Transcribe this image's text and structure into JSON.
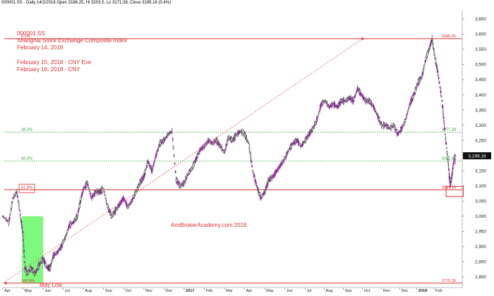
{
  "header": {
    "info_line": "000001.SS - Daily 14/2/2018 Open 3188.25, Hi 3203.5, Lo 3171.38, Close 3199.16 (0.4%)"
  },
  "annotations": {
    "symbol": "000001.SS",
    "index_name": "Shanghai Stock Exchange Composite Index",
    "date": "February 14, 2018",
    "cny_eve": "February 15, 2018 - CNY Eve",
    "cny": "February 16, 2018 - CNY",
    "watermark": "AmiBrokerAcademy.com  2018",
    "may_low": "May Low"
  },
  "fib_levels": [
    {
      "label": "0.0%",
      "price": 3585.05,
      "price_label": "3585.05",
      "color": "#e03030",
      "style": "solid"
    },
    {
      "label": "38.2%",
      "price": 3277.28,
      "price_label": "3277.28",
      "color": "#2e9c2e",
      "style": "dotted"
    },
    {
      "label": "50.0%",
      "price": 3182.21,
      "price_label": "3182.21",
      "color": "#2e9c2e",
      "style": "dotted"
    },
    {
      "label": "61.8%",
      "price": 3087.15,
      "price_label": "3087.15",
      "color": "#e03030",
      "style": "solid"
    },
    {
      "label": "100.0%",
      "price": 2779.39,
      "price_label": "2779.39",
      "color": "#e03030",
      "style": "solid"
    }
  ],
  "last_close_label": "3,199.16",
  "chart_data": {
    "type": "line",
    "title": "000001.SS",
    "y_axis": {
      "ticks": [
        "3,650",
        "3,600",
        "3,550",
        "3,500",
        "3,450",
        "3,400",
        "3,350",
        "3,300",
        "3,250",
        "3,200",
        "3,150",
        "3,100",
        "3,050",
        "3,000",
        "2,950",
        "2,900",
        "2,850",
        "2,800"
      ],
      "tick_values": [
        3650,
        3600,
        3550,
        3500,
        3450,
        3400,
        3350,
        3300,
        3250,
        3200,
        3150,
        3100,
        3050,
        3000,
        2950,
        2900,
        2850,
        2800
      ],
      "ylim": [
        2765,
        3680
      ]
    },
    "x_axis": {
      "ticks": [
        "Apr",
        "May",
        "Jun",
        "Jul",
        "Aug",
        "Sep",
        "Oct",
        "Nov",
        "Dec",
        "2017",
        "Feb",
        "Mar",
        "Apr",
        "May",
        "Jun",
        "Jul",
        "Aug",
        "Sep",
        "Oct",
        "Nov",
        "Dec",
        "2018",
        "Feb"
      ],
      "tick_index": [
        0,
        1,
        2,
        3,
        4,
        5,
        6,
        7,
        8,
        9,
        10,
        11,
        12,
        13,
        14,
        15,
        15.95,
        16.9,
        17.85,
        18.8,
        19.7,
        20.55,
        21.4
      ],
      "xlim": [
        0,
        22.8
      ]
    },
    "series": [
      {
        "values": [
          [
            0.0,
            3000
          ],
          [
            0.3,
            2980
          ],
          [
            0.5,
            3060
          ],
          [
            0.7,
            3080
          ],
          [
            0.9,
            2990
          ],
          [
            1.0,
            2940
          ],
          [
            1.1,
            2830
          ],
          [
            1.2,
            2810
          ],
          [
            1.4,
            2830
          ],
          [
            1.6,
            2810
          ],
          [
            1.8,
            2840
          ],
          [
            2.0,
            2860
          ],
          [
            2.2,
            2830
          ],
          [
            2.35,
            2830
          ],
          [
            2.5,
            2870
          ],
          [
            2.7,
            2880
          ],
          [
            2.9,
            2900
          ],
          [
            3.1,
            2930
          ],
          [
            3.3,
            2970
          ],
          [
            3.5,
            2980
          ],
          [
            3.7,
            3000
          ],
          [
            3.85,
            3050
          ],
          [
            4.0,
            3090
          ],
          [
            4.2,
            3110
          ],
          [
            4.4,
            3060
          ],
          [
            4.6,
            3080
          ],
          [
            4.8,
            3080
          ],
          [
            5.0,
            3090
          ],
          [
            5.2,
            3030
          ],
          [
            5.4,
            3000
          ],
          [
            5.6,
            3020
          ],
          [
            5.8,
            3040
          ],
          [
            6.0,
            3060
          ],
          [
            6.2,
            3030
          ],
          [
            6.4,
            3050
          ],
          [
            6.6,
            3080
          ],
          [
            6.8,
            3110
          ],
          [
            7.0,
            3130
          ],
          [
            7.2,
            3180
          ],
          [
            7.4,
            3150
          ],
          [
            7.6,
            3200
          ],
          [
            7.8,
            3240
          ],
          [
            8.0,
            3250
          ],
          [
            8.2,
            3270
          ],
          [
            8.4,
            3280
          ],
          [
            8.6,
            3120
          ],
          [
            8.8,
            3100
          ],
          [
            9.0,
            3110
          ],
          [
            9.2,
            3140
          ],
          [
            9.4,
            3160
          ],
          [
            9.6,
            3190
          ],
          [
            9.8,
            3220
          ],
          [
            10.0,
            3230
          ],
          [
            10.2,
            3250
          ],
          [
            10.4,
            3240
          ],
          [
            10.6,
            3250
          ],
          [
            10.8,
            3230
          ],
          [
            11.0,
            3210
          ],
          [
            11.2,
            3260
          ],
          [
            11.4,
            3250
          ],
          [
            11.6,
            3270
          ],
          [
            11.8,
            3280
          ],
          [
            12.0,
            3270
          ],
          [
            12.2,
            3240
          ],
          [
            12.4,
            3150
          ],
          [
            12.6,
            3100
          ],
          [
            12.8,
            3060
          ],
          [
            13.0,
            3080
          ],
          [
            13.2,
            3120
          ],
          [
            13.4,
            3130
          ],
          [
            13.6,
            3150
          ],
          [
            13.8,
            3170
          ],
          [
            14.0,
            3190
          ],
          [
            14.2,
            3220
          ],
          [
            14.4,
            3240
          ],
          [
            14.6,
            3250
          ],
          [
            14.8,
            3230
          ],
          [
            15.0,
            3250
          ],
          [
            15.2,
            3270
          ],
          [
            15.4,
            3290
          ],
          [
            15.6,
            3320
          ],
          [
            15.8,
            3370
          ],
          [
            16.0,
            3380
          ],
          [
            16.2,
            3360
          ],
          [
            16.4,
            3370
          ],
          [
            16.6,
            3360
          ],
          [
            16.8,
            3380
          ],
          [
            17.0,
            3380
          ],
          [
            17.2,
            3390
          ],
          [
            17.4,
            3380
          ],
          [
            17.6,
            3420
          ],
          [
            17.8,
            3400
          ],
          [
            18.0,
            3380
          ],
          [
            18.2,
            3380
          ],
          [
            18.4,
            3360
          ],
          [
            18.6,
            3330
          ],
          [
            18.8,
            3300
          ],
          [
            19.0,
            3300
          ],
          [
            19.2,
            3290
          ],
          [
            19.4,
            3300
          ],
          [
            19.6,
            3270
          ],
          [
            19.8,
            3290
          ],
          [
            20.0,
            3320
          ],
          [
            20.2,
            3370
          ],
          [
            20.4,
            3400
          ],
          [
            20.6,
            3440
          ],
          [
            20.8,
            3460
          ],
          [
            21.0,
            3520
          ],
          [
            21.2,
            3560
          ],
          [
            21.3,
            3585
          ],
          [
            21.45,
            3520
          ],
          [
            21.6,
            3470
          ],
          [
            21.8,
            3380
          ],
          [
            21.95,
            3270
          ],
          [
            22.1,
            3180
          ],
          [
            22.2,
            3100
          ],
          [
            22.3,
            3140
          ],
          [
            22.4,
            3190
          ],
          [
            22.45,
            3199
          ]
        ]
      }
    ],
    "trend_line": {
      "from": [
        0.0,
        2779.39
      ],
      "to": [
        17.85,
        3585.05
      ]
    },
    "highlight_box": {
      "from_x": 0.95,
      "to_x": 2.0,
      "from_y": 2779.39,
      "to_y": 3000
    },
    "target_box": {
      "from_x": 22.0,
      "to_x": 22.85,
      "from_y": 3065,
      "to_y": 3098
    }
  }
}
